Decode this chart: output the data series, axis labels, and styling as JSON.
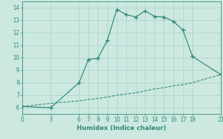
{
  "xlabel": "Humidex (Indice chaleur)",
  "line1_x": [
    0,
    3,
    6,
    7,
    8,
    9,
    10,
    11,
    12,
    13,
    14,
    15,
    16,
    17,
    18,
    21
  ],
  "line1_y": [
    6.1,
    6.0,
    8.0,
    9.85,
    9.95,
    11.4,
    13.85,
    13.45,
    13.25,
    13.75,
    13.3,
    13.25,
    12.9,
    12.2,
    10.1,
    8.65
  ],
  "line2_x": [
    0,
    3,
    6,
    7,
    8,
    9,
    10,
    11,
    12,
    13,
    14,
    15,
    16,
    17,
    18,
    21
  ],
  "line2_y": [
    6.1,
    6.35,
    6.55,
    6.65,
    6.75,
    6.85,
    7.0,
    7.1,
    7.2,
    7.35,
    7.5,
    7.6,
    7.75,
    7.85,
    8.0,
    8.65
  ],
  "line_color": "#2e8b72",
  "bg_color": "#cce8e0",
  "grid_color": "#aed4cb",
  "xlim": [
    0,
    21
  ],
  "ylim": [
    5.5,
    14.5
  ],
  "xticks": [
    0,
    3,
    6,
    7,
    8,
    9,
    10,
    11,
    12,
    13,
    14,
    15,
    16,
    17,
    18,
    21
  ],
  "yticks": [
    6,
    7,
    8,
    9,
    10,
    11,
    12,
    13,
    14
  ],
  "tick_fontsize": 5.5,
  "xlabel_fontsize": 6.5
}
